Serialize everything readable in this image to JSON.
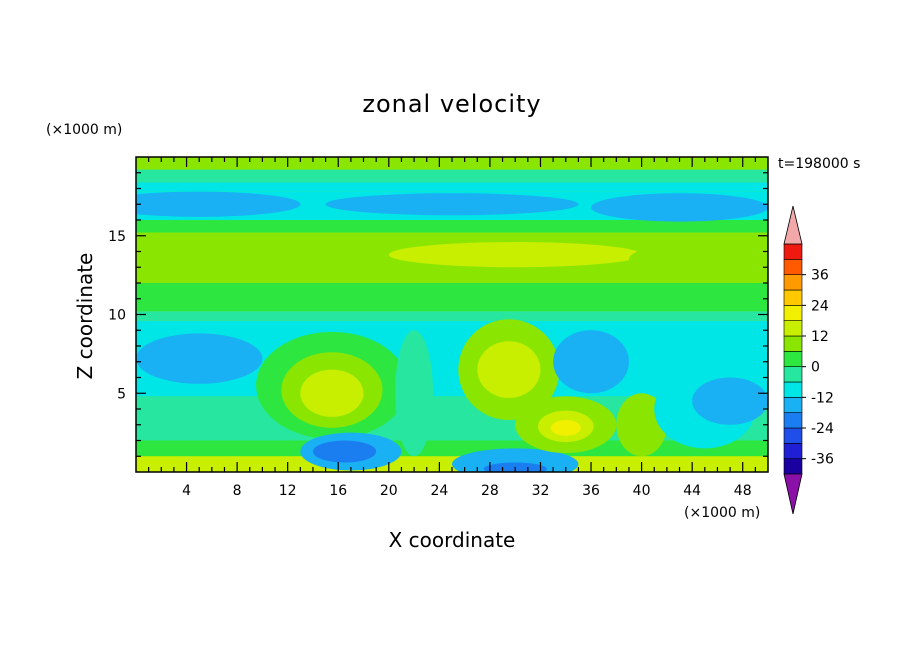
{
  "chart_data": {
    "type": "heatmap",
    "title": "zonal velocity",
    "xlabel": "X coordinate",
    "ylabel": "Z coordinate",
    "x_unit": "(×1000 m)",
    "y_unit": "(×1000 m)",
    "time_label": "t=198000 s",
    "xlim": [
      0,
      50
    ],
    "ylim": [
      0,
      20
    ],
    "x_ticks": [
      4,
      8,
      12,
      16,
      20,
      24,
      28,
      32,
      36,
      40,
      44,
      48
    ],
    "y_ticks": [
      5,
      10,
      15
    ],
    "colorbar": {
      "labels": [
        "36",
        "24",
        "12",
        "0",
        "-12",
        "-24",
        "-36"
      ],
      "levels": [
        -42,
        -36,
        -30,
        -24,
        -18,
        -12,
        -6,
        0,
        6,
        12,
        18,
        24,
        30,
        36,
        42
      ],
      "colors": [
        "#1a00a0",
        "#1f1fd6",
        "#1f4fe8",
        "#1a7ef0",
        "#19b0f4",
        "#00e6e6",
        "#26e6a0",
        "#2ee640",
        "#8ae600",
        "#c8ee00",
        "#f0f000",
        "#ffc800",
        "#ff9a00",
        "#ff5a00",
        "#ee1a10"
      ],
      "under_color": "#8a10a8",
      "over_color": "#f2a8a8"
    },
    "field_background": "#8ae600",
    "field_rows": [
      {
        "z": [
          18.4,
          19.2
        ],
        "u": -3
      },
      {
        "z": [
          17.8,
          18.4
        ],
        "u": -7
      },
      {
        "z": [
          16.0,
          17.8
        ],
        "u": -9
      },
      {
        "z": [
          15.2,
          16.0
        ],
        "u": 2
      },
      {
        "z": [
          12.0,
          15.2
        ],
        "u": 9
      },
      {
        "z": [
          10.2,
          12.0
        ],
        "u": 3
      },
      {
        "z": [
          9.6,
          10.2
        ],
        "u": -3
      },
      {
        "z": [
          4.8,
          9.6
        ],
        "u": -10
      },
      {
        "z": [
          2.0,
          4.8
        ],
        "u": -6
      },
      {
        "z": [
          1.0,
          2.0
        ],
        "u": 3
      },
      {
        "z": [
          0.0,
          1.0
        ],
        "u": 12
      }
    ],
    "features": [
      {
        "x": 5,
        "z": 17.0,
        "rx": 8,
        "rz": 0.8,
        "u": -13
      },
      {
        "x": 25,
        "z": 17.0,
        "rx": 10,
        "rz": 0.7,
        "u": -14
      },
      {
        "x": 43,
        "z": 16.8,
        "rx": 7,
        "rz": 0.9,
        "u": -13
      },
      {
        "x": 30,
        "z": 13.8,
        "rx": 10,
        "rz": 0.8,
        "u": 12
      },
      {
        "x": 44,
        "z": 13.5,
        "rx": 5,
        "rz": 1.0,
        "u": 11
      },
      {
        "x": 5,
        "z": 7.2,
        "rx": 5,
        "rz": 1.6,
        "u": -14
      },
      {
        "x": 3.5,
        "z": 7.4,
        "rx": 1.5,
        "rz": 0.5,
        "u": -18
      },
      {
        "x": 15.5,
        "z": 5.5,
        "rx": 6,
        "rz": 3.4,
        "u": 4
      },
      {
        "x": 15.5,
        "z": 5.2,
        "rx": 4,
        "rz": 2.4,
        "u": 9
      },
      {
        "x": 15.5,
        "z": 5.0,
        "rx": 2.5,
        "rz": 1.5,
        "u": 13
      },
      {
        "x": 15.5,
        "z": 5.0,
        "rx": 1.3,
        "rz": 0.8,
        "u": 17
      },
      {
        "x": 17,
        "z": 1.3,
        "rx": 4,
        "rz": 1.2,
        "u": -13
      },
      {
        "x": 16.5,
        "z": 1.3,
        "rx": 2.5,
        "rz": 0.7,
        "u": -19
      },
      {
        "x": 22,
        "z": 5.0,
        "rx": 1.5,
        "rz": 4.0,
        "u": -6
      },
      {
        "x": 29.5,
        "z": 6.5,
        "rx": 4,
        "rz": 3.2,
        "u": 9
      },
      {
        "x": 29.5,
        "z": 6.5,
        "rx": 2.5,
        "rz": 1.8,
        "u": 13
      },
      {
        "x": 30,
        "z": 0.5,
        "rx": 5,
        "rz": 1.0,
        "u": -13
      },
      {
        "x": 30,
        "z": 0.2,
        "rx": 2.5,
        "rz": 0.4,
        "u": -22
      },
      {
        "x": 34,
        "z": 3.0,
        "rx": 4,
        "rz": 1.8,
        "u": 8
      },
      {
        "x": 34,
        "z": 2.9,
        "rx": 2.2,
        "rz": 1.0,
        "u": 14
      },
      {
        "x": 34,
        "z": 2.8,
        "rx": 1.2,
        "rz": 0.5,
        "u": 19
      },
      {
        "x": 36,
        "z": 7.0,
        "rx": 3,
        "rz": 2.0,
        "u": -13
      },
      {
        "x": 40,
        "z": 3.0,
        "rx": 2,
        "rz": 2.0,
        "u": 6
      },
      {
        "x": 45,
        "z": 4.0,
        "rx": 4,
        "rz": 2.5,
        "u": -12
      },
      {
        "x": 47,
        "z": 4.5,
        "rx": 3,
        "rz": 1.5,
        "u": -14
      }
    ]
  }
}
